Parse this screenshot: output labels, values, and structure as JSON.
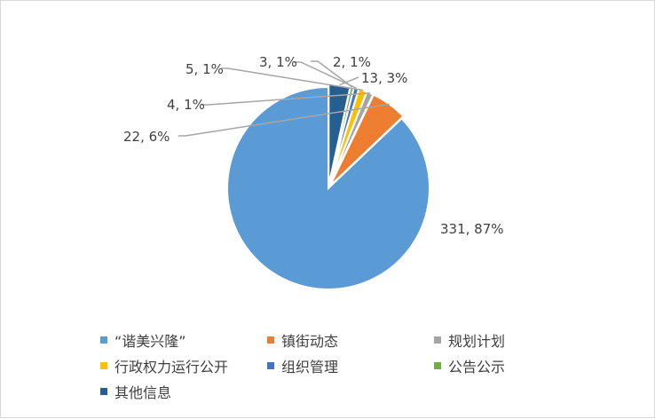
{
  "chart_data": {
    "type": "pie",
    "title": "",
    "slices": [
      {
        "name": "“谐美兴隆”",
        "value": 331,
        "percent": "87%",
        "label": "331, 87%",
        "color": "#5B9BD5"
      },
      {
        "name": "镇街动态",
        "value": 22,
        "percent": "6%",
        "label": "22, 6%",
        "color": "#ED7D31"
      },
      {
        "name": "规划计划",
        "value": 4,
        "percent": "1%",
        "label": "4, 1%",
        "color": "#A5A5A5"
      },
      {
        "name": "行政权力运行公开",
        "value": 5,
        "percent": "1%",
        "label": "5, 1%",
        "color": "#FFC000"
      },
      {
        "name": "组织管理",
        "value": 3,
        "percent": "1%",
        "label": "3, 1%",
        "color": "#4472C4"
      },
      {
        "name": "公告公示",
        "value": 2,
        "percent": "1%",
        "label": "2, 1%",
        "color": "#70AD47"
      },
      {
        "name": "其他信息",
        "value": 13,
        "percent": "3%",
        "label": "13, 3%",
        "color": "#255E91"
      }
    ],
    "legend_position": "bottom"
  }
}
